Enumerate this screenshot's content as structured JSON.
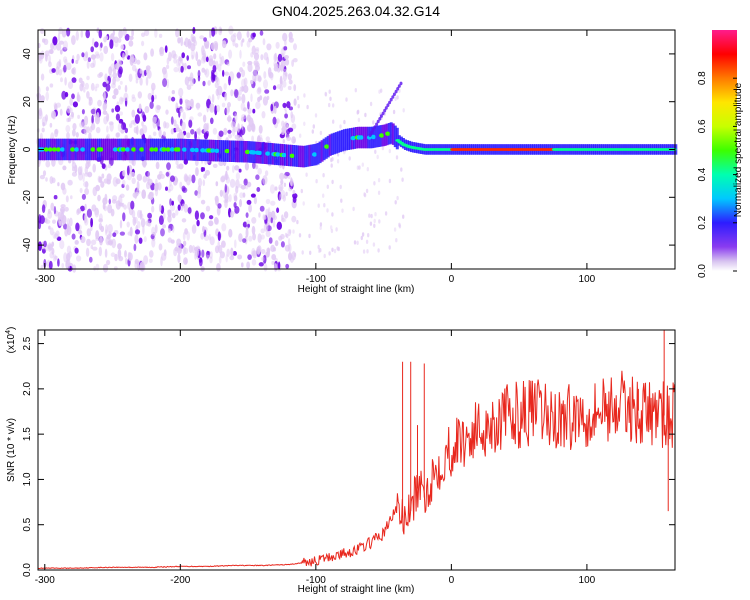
{
  "title": "GN04.2025.263.04.32.G14",
  "colors": {
    "snr_line": "#e8281e",
    "spec_low": "#e0c8f4",
    "spec_mid": "#6a00e6",
    "axis": "#000000"
  },
  "chart_data": [
    {
      "type": "heatmap",
      "name": "spectrogram",
      "xlabel": "Height of straight line (km)",
      "ylabel": "Frequency (Hz)",
      "xlim": [
        -305,
        165
      ],
      "ylim": [
        -50,
        50
      ],
      "x_ticks": [
        -300,
        -200,
        -100,
        0,
        100
      ],
      "y_ticks": [
        -40,
        -20,
        0,
        20,
        40
      ],
      "colorbar": {
        "label": "Normalized spectral amplitude",
        "range": [
          0,
          1
        ],
        "ticks": [
          "0.0",
          "0.2",
          "0.4",
          "0.6",
          "0.8"
        ]
      },
      "dominant_frequency_track": {
        "x": [
          -305,
          -250,
          -200,
          -150,
          -130,
          -110,
          -100,
          -90,
          -80,
          -70,
          -60,
          -50,
          -45,
          -40,
          -35,
          -30,
          -20,
          -10,
          0,
          50,
          100,
          150,
          165
        ],
        "y": [
          0,
          0,
          0,
          -1,
          -2,
          -3,
          -2,
          2,
          4,
          5,
          5,
          6,
          7,
          4,
          2,
          1,
          0,
          0,
          0,
          0,
          0,
          0,
          0
        ]
      }
    },
    {
      "type": "line",
      "name": "snr",
      "xlabel": "Height of straight line (km)",
      "ylabel": "SNR (10 * v/v)",
      "y_multiplier": "(x10",
      "y_multiplier_exp": "4",
      "xlim": [
        -305,
        165
      ],
      "ylim": [
        0,
        2.65
      ],
      "x_ticks": [
        -300,
        -200,
        -100,
        0,
        100
      ],
      "y_ticks": [
        "0.0",
        "0.5",
        "1.0",
        "1.5",
        "2.0",
        "2.5"
      ],
      "series": [
        {
          "x": [
            -305,
            -280,
            -250,
            -220,
            -200,
            -180,
            -160,
            -140,
            -120,
            -110,
            -100,
            -90,
            -80,
            -70,
            -60,
            -50,
            -45,
            -40,
            -35,
            -30,
            -25,
            -20,
            -15,
            -10,
            -5,
            0,
            10,
            20,
            30,
            40,
            50,
            60,
            70,
            80,
            90,
            100,
            110,
            120,
            130,
            140,
            150,
            160,
            165
          ],
          "y": [
            0.02,
            0.02,
            0.03,
            0.03,
            0.04,
            0.04,
            0.05,
            0.05,
            0.06,
            0.08,
            0.1,
            0.14,
            0.18,
            0.22,
            0.3,
            0.4,
            0.55,
            0.7,
            0.55,
            0.65,
            0.9,
            0.8,
            1.0,
            1.15,
            1.25,
            1.35,
            1.45,
            1.55,
            1.62,
            1.68,
            1.72,
            1.75,
            1.7,
            1.66,
            1.7,
            1.74,
            1.78,
            1.82,
            1.8,
            1.75,
            1.72,
            1.7,
            1.7
          ]
        }
      ],
      "spikes": [
        {
          "x": -36,
          "y": 2.3
        },
        {
          "x": -30,
          "y": 2.3
        },
        {
          "x": -25,
          "y": 1.6
        },
        {
          "x": -20,
          "y": 2.28
        },
        {
          "x": 138,
          "y": 2.0
        },
        {
          "x": 157,
          "y": 2.65
        },
        {
          "x": 160,
          "y": 0.65
        }
      ]
    }
  ]
}
